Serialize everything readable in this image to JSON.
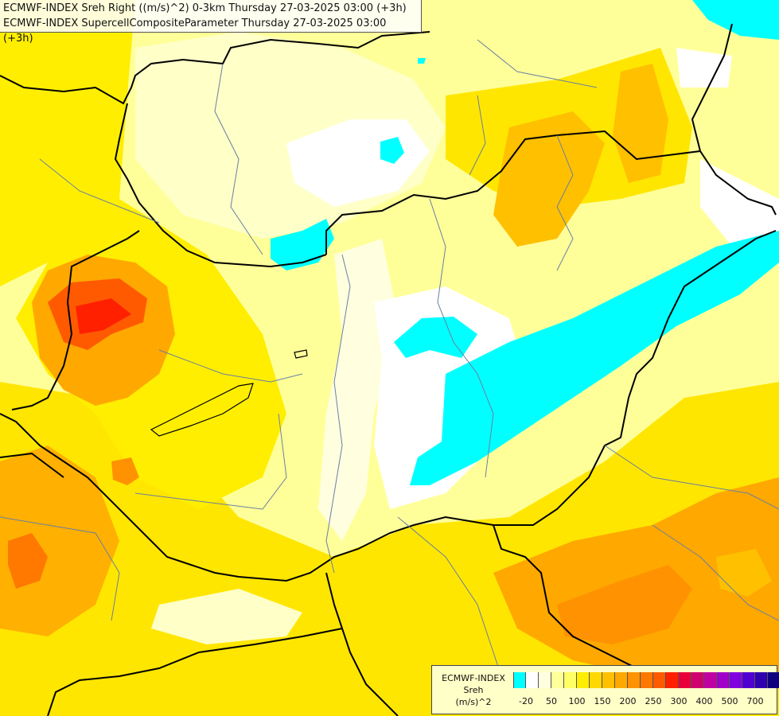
{
  "title": {
    "line1": "ECMWF-INDEX Sreh Right ((m/s)^2) 0-3km Thursday 27-03-2025 03:00 (+3h)",
    "line2": "ECMWF-INDEX SupercellCompositeParameter Thursday 27-03-2025 03:00 (+3h)"
  },
  "legend": {
    "line1": "ECMWF-INDEX",
    "line2": "Sreh",
    "line3": "(m/s)^2",
    "colors": [
      "#00ffff",
      "#ffffff",
      "#ffffe0",
      "#ffff9a",
      "#ffff66",
      "#ffee00",
      "#ffd800",
      "#ffc000",
      "#ffa800",
      "#ff9200",
      "#ff7800",
      "#ff5a00",
      "#ff2000",
      "#e8003a",
      "#d0006e",
      "#c000a0",
      "#a000c8",
      "#8000e0",
      "#5000d0",
      "#3000b0",
      "#100080"
    ],
    "ticks": [
      {
        "label": "-20",
        "idx": 1
      },
      {
        "label": "50",
        "idx": 3
      },
      {
        "label": "100",
        "idx": 5
      },
      {
        "label": "150",
        "idx": 7
      },
      {
        "label": "200",
        "idx": 9
      },
      {
        "label": "250",
        "idx": 11
      },
      {
        "label": "300",
        "idx": 13
      },
      {
        "label": "400",
        "idx": 15
      },
      {
        "label": "500",
        "idx": 17
      },
      {
        "label": "700",
        "idx": 19
      }
    ]
  }
}
